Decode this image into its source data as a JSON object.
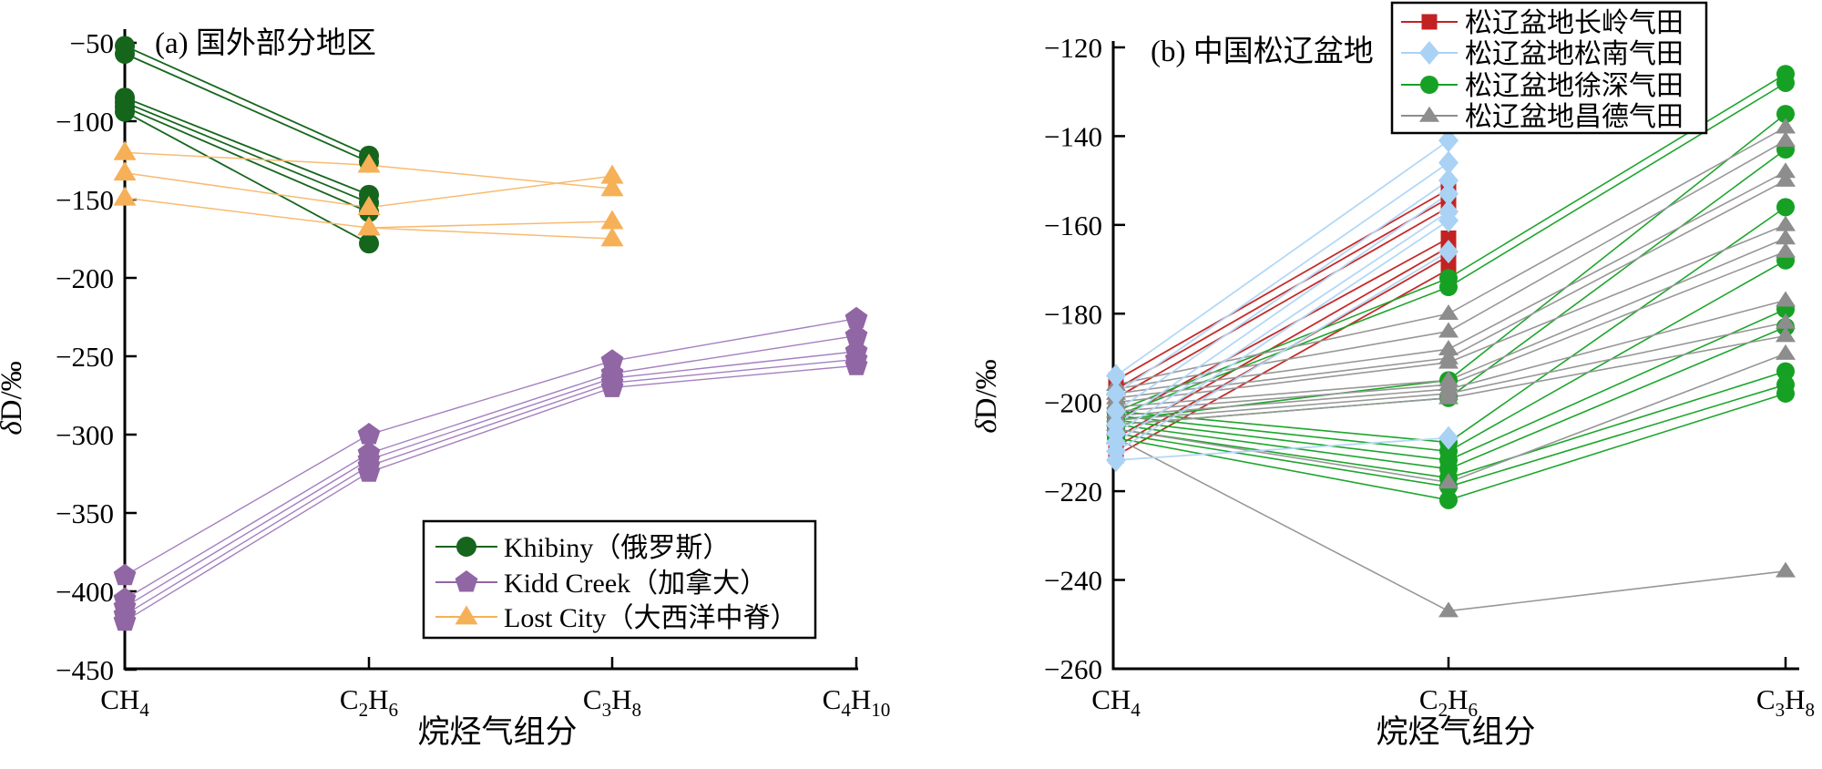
{
  "page": {
    "background": "#ffffff",
    "axis_color": "#000000"
  },
  "chart_data": [
    {
      "panel_id": "a",
      "type": "line",
      "title": "(a) 国外部分地区",
      "xlabel": "烷烃气组分",
      "ylabel": "δD/‰",
      "categories": [
        "CH_4",
        "C_2H_6",
        "C_3H_8",
        "C_4H_10"
      ],
      "ylim": [
        -450,
        -50
      ],
      "yticks": [
        -50,
        -100,
        -150,
        -200,
        -250,
        -300,
        -350,
        -400,
        -450
      ],
      "grid": false,
      "legend_position": "inside-bottom-right",
      "legend_entries": [
        {
          "label": "Khibiny（俄罗斯）",
          "marker": "circle",
          "color": "#16651c"
        },
        {
          "label": "Kidd Creek（加拿大）",
          "marker": "pentagon",
          "color": "#9166a4"
        },
        {
          "label": "Lost City（大西洋中脊）",
          "marker": "triangle",
          "color": "#f6b057"
        }
      ],
      "groups": [
        {
          "name": "Khibiny（俄罗斯）",
          "marker": "circle",
          "color": "#16651c",
          "line_color": "#17671d",
          "line_width": 1.8,
          "series": [
            [
              -52,
              -122,
              null,
              null
            ],
            [
              -57,
              -126,
              null,
              null
            ],
            [
              -85,
              -147,
              null,
              null
            ],
            [
              -88,
              -152,
              null,
              null
            ],
            [
              -91,
              -158,
              null,
              null
            ],
            [
              -94,
              -178,
              null,
              null
            ]
          ]
        },
        {
          "name": "Kidd Creek（加拿大）",
          "marker": "pentagon",
          "color": "#9166a4",
          "line_color": "#a47fc0",
          "line_width": 1.4,
          "series": [
            [
              -390,
              -300,
              -253,
              -226
            ],
            [
              -405,
              -312,
              -261,
              -237
            ],
            [
              -410,
              -316,
              -264,
              -247
            ],
            [
              -415,
              -320,
              -267,
              -252
            ],
            [
              -419,
              -324,
              -270,
              -256
            ]
          ]
        },
        {
          "name": "Lost City（大西洋中脊）",
          "marker": "triangle",
          "color": "#f6b057",
          "line_color": "#f8bb72",
          "line_width": 1.5,
          "series": [
            [
              -120,
              -128,
              -143,
              null
            ],
            [
              -133,
              -155,
              -135,
              null
            ],
            [
              -149,
              -168,
              -175,
              null
            ],
            [
              null,
              -168,
              -164,
              null
            ]
          ]
        }
      ]
    },
    {
      "panel_id": "b",
      "type": "line",
      "title": "(b) 中国松辽盆地",
      "xlabel": "烷烃气组分",
      "ylabel": "δD/‰",
      "categories": [
        "CH_4",
        "C_2H_6",
        "C_3H_8"
      ],
      "ylim": [
        -260,
        -120
      ],
      "yticks": [
        -120,
        -140,
        -160,
        -180,
        -200,
        -220,
        -240,
        -260
      ],
      "grid": false,
      "legend_position": "top-right",
      "legend_entries": [
        {
          "label": "松辽盆地长岭气田",
          "marker": "square",
          "color": "#c32222"
        },
        {
          "label": "松辽盆地松南气田",
          "marker": "diamond",
          "color": "#a9d2f4"
        },
        {
          "label": "松辽盆地徐深气田",
          "marker": "circle",
          "color": "#16a124"
        },
        {
          "label": "松辽盆地昌德气田",
          "marker": "triangle",
          "color": "#8d8d8d"
        }
      ],
      "groups": [
        {
          "name": "松辽盆地长岭气田",
          "marker": "square",
          "color": "#c32222",
          "line_color": "#c62a2a",
          "line_width": 1.8,
          "series": [
            [
              -195,
              -152,
              null
            ],
            [
              -197,
              -154,
              null
            ],
            [
              -199,
              -156,
              null
            ],
            [
              -204,
              -163,
              null
            ],
            [
              -208,
              -165,
              null
            ],
            [
              -210,
              -167,
              null
            ],
            [
              -212,
              -170,
              null
            ]
          ]
        },
        {
          "name": "松辽盆地徐深气田",
          "marker": "circle",
          "color": "#16a124",
          "line_color": "#1ea52c",
          "line_width": 1.6,
          "series": [
            [
              -202,
              -172,
              -126
            ],
            [
              -203,
              -174,
              -128
            ],
            [
              -204,
              -195,
              -135
            ],
            [
              -205,
              -199,
              -143
            ],
            [
              -202,
              -209,
              -156
            ],
            [
              -203,
              -211,
              -168
            ],
            [
              -204,
              -213,
              -179
            ],
            [
              -205,
              -215,
              -183
            ],
            [
              -206,
              -217,
              -193
            ],
            [
              -207,
              -219,
              -196
            ],
            [
              -208,
              -222,
              -198
            ]
          ]
        },
        {
          "name": "松辽盆地昌德气田",
          "marker": "triangle",
          "color": "#8d8d8d",
          "line_color": "#979797",
          "line_width": 1.6,
          "series": [
            [
              -196,
              -180,
              -138
            ],
            [
              -197,
              -184,
              -141
            ],
            [
              -198,
              -188,
              -148
            ],
            [
              -199,
              -190,
              -150
            ],
            [
              -200,
              -191,
              -160
            ],
            [
              -201,
              -195,
              -163
            ],
            [
              -202,
              -196,
              -166
            ],
            [
              -203,
              -197,
              -177
            ],
            [
              -204,
              -198,
              -182
            ],
            [
              -205,
              -199,
              -185
            ],
            [
              -206,
              -218,
              -189
            ],
            [
              -208,
              -247,
              -238
            ]
          ]
        },
        {
          "name": "松辽盆地松南气田",
          "marker": "diamond",
          "color": "#a9d2f4",
          "line_color": "#b3d8f6",
          "line_width": 1.8,
          "series": [
            [
              -194,
              -141,
              null
            ],
            [
              -198,
              -146,
              null
            ],
            [
              -202,
              -150,
              null
            ],
            [
              -205,
              -153,
              null
            ],
            [
              -207,
              -157,
              null
            ],
            [
              -209,
              -159,
              null
            ],
            [
              -211,
              -166,
              null
            ],
            [
              -213,
              -208,
              null
            ]
          ]
        }
      ]
    }
  ]
}
